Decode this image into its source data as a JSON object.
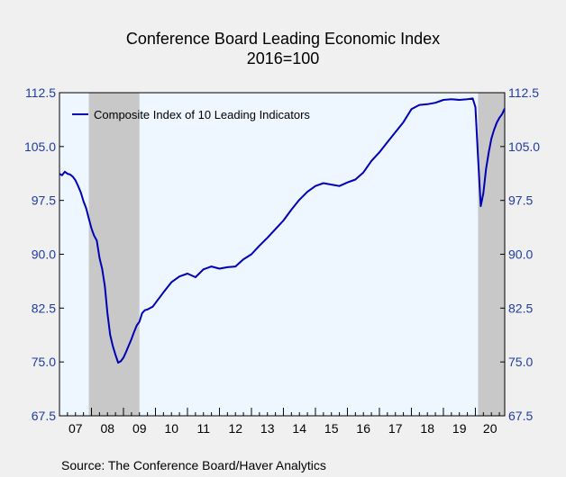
{
  "chart_data": {
    "type": "line",
    "title": "Conference Board Leading Economic Index",
    "subtitle": "2016=100",
    "source": "Source:  The Conference Board/Haver Analytics",
    "ylim": [
      67.5,
      112.5
    ],
    "y_ticks": [
      "112.5",
      "105.0",
      "97.5",
      "90.0",
      "82.5",
      "75.0",
      "67.5"
    ],
    "x_tick_labels": [
      "07",
      "08",
      "09",
      "10",
      "11",
      "12",
      "13",
      "14",
      "15",
      "16",
      "17",
      "18",
      "19",
      "20"
    ],
    "xlim": [
      2007.0,
      2020.917
    ],
    "legend": "top-left",
    "grid": false,
    "recessions": [
      [
        2007.917,
        2009.5
      ],
      [
        2020.083,
        2020.917
      ]
    ],
    "colors": {
      "line": "#0000b4",
      "axis_labels": "#1e3ca0",
      "recession": "#c8c8c8",
      "plot_bg": "#eef6ff"
    },
    "series": [
      {
        "name": "Composite Index of 10 Leading Indicators",
        "x": [
          2007.0,
          2007.083,
          2007.167,
          2007.25,
          2007.333,
          2007.417,
          2007.5,
          2007.583,
          2007.667,
          2007.75,
          2007.833,
          2007.917,
          2008.0,
          2008.083,
          2008.167,
          2008.25,
          2008.333,
          2008.417,
          2008.5,
          2008.583,
          2008.667,
          2008.75,
          2008.833,
          2008.917,
          2009.0,
          2009.083,
          2009.167,
          2009.25,
          2009.333,
          2009.417,
          2009.5,
          2009.583,
          2009.667,
          2009.75,
          2009.833,
          2009.917,
          2010.0,
          2010.25,
          2010.5,
          2010.75,
          2011.0,
          2011.25,
          2011.5,
          2011.75,
          2012.0,
          2012.25,
          2012.5,
          2012.75,
          2013.0,
          2013.25,
          2013.5,
          2013.75,
          2014.0,
          2014.25,
          2014.5,
          2014.75,
          2015.0,
          2015.25,
          2015.5,
          2015.75,
          2016.0,
          2016.25,
          2016.5,
          2016.75,
          2017.0,
          2017.25,
          2017.5,
          2017.75,
          2018.0,
          2018.25,
          2018.5,
          2018.75,
          2019.0,
          2019.25,
          2019.5,
          2019.75,
          2019.917,
          2020.0,
          2020.083,
          2020.167,
          2020.25,
          2020.333,
          2020.417,
          2020.5,
          2020.583,
          2020.667,
          2020.75,
          2020.833,
          2020.917
        ],
        "values": [
          101.2,
          101.0,
          101.5,
          101.2,
          101.1,
          100.8,
          100.3,
          99.5,
          98.6,
          97.4,
          96.4,
          95.0,
          93.6,
          92.6,
          91.9,
          89.5,
          88.0,
          85.6,
          81.8,
          78.8,
          77.2,
          76.0,
          74.9,
          75.1,
          75.6,
          76.4,
          77.3,
          78.2,
          79.2,
          80.1,
          80.6,
          81.8,
          82.2,
          82.3,
          82.5,
          82.7,
          83.2,
          84.7,
          86.1,
          86.9,
          87.3,
          86.8,
          87.9,
          88.3,
          88.0,
          88.2,
          88.3,
          89.3,
          90.0,
          91.2,
          92.3,
          93.5,
          94.7,
          96.2,
          97.6,
          98.7,
          99.5,
          99.9,
          99.7,
          99.5,
          100.0,
          100.4,
          101.4,
          103.0,
          104.2,
          105.6,
          107.0,
          108.4,
          110.2,
          110.8,
          110.9,
          111.1,
          111.5,
          111.6,
          111.5,
          111.6,
          111.7,
          110.5,
          103.5,
          96.7,
          98.5,
          101.9,
          104.2,
          106.1,
          107.3,
          108.3,
          109.0,
          109.5,
          110.3
        ]
      }
    ]
  }
}
